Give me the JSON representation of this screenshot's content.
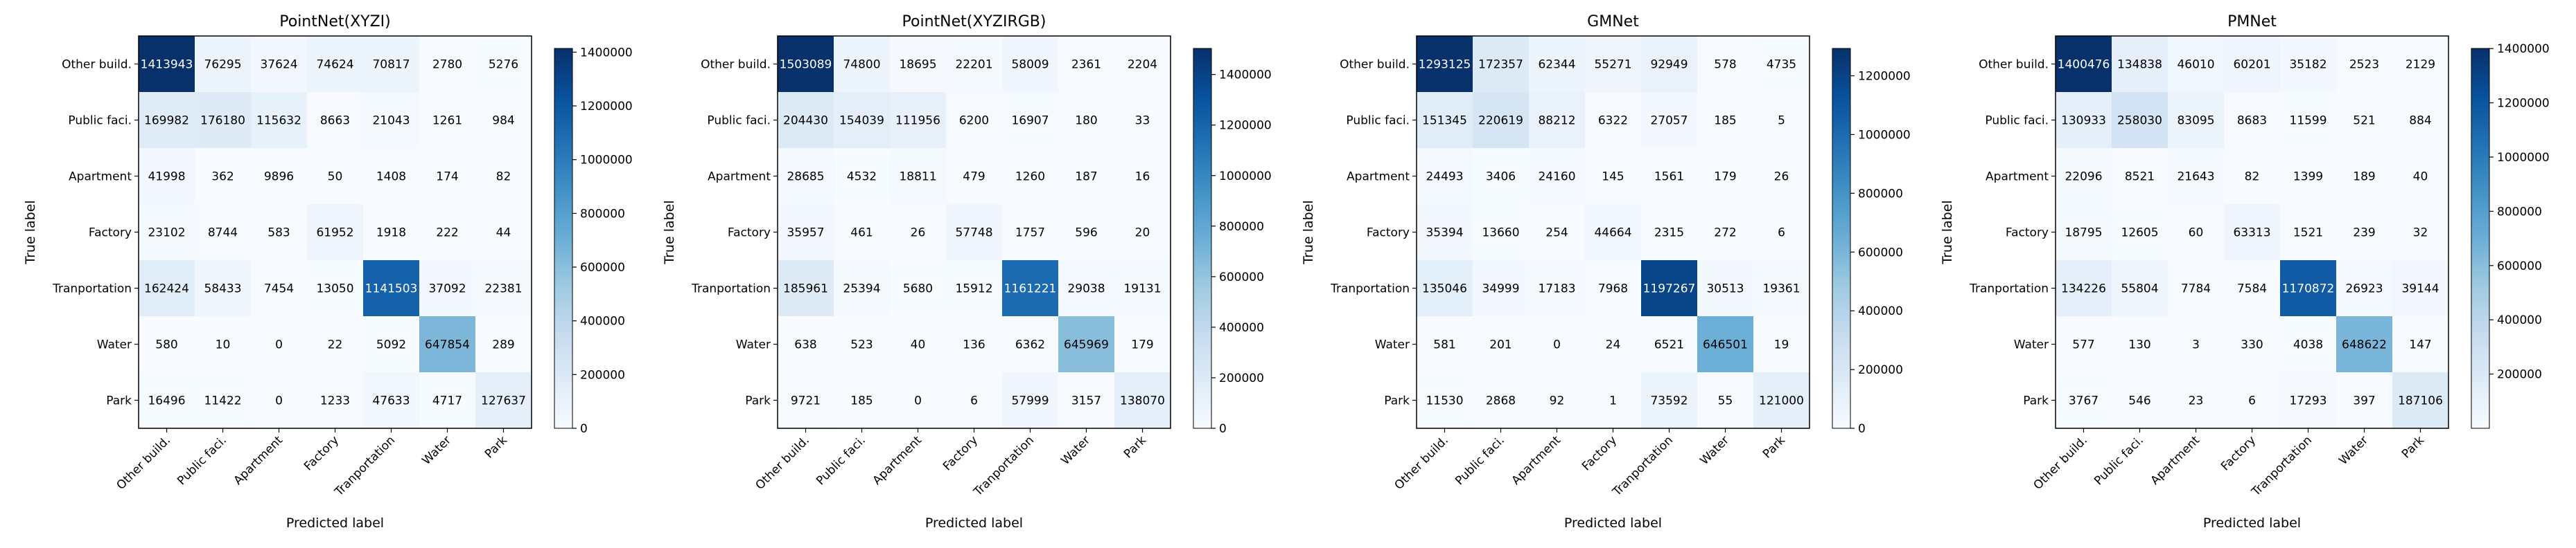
{
  "chart_data": [
    {
      "type": "heatmap",
      "title": "PointNet(XYZI)",
      "xlabel": "Predicted label",
      "ylabel": "True label",
      "categories": [
        "Other build.",
        "Public faci.",
        "Apartment",
        "Factory",
        "Tranportation",
        "Water",
        "Park"
      ],
      "matrix": [
        [
          1413943,
          76295,
          37624,
          74624,
          70817,
          2780,
          5276
        ],
        [
          169982,
          176180,
          115632,
          8663,
          21043,
          1261,
          984
        ],
        [
          41998,
          362,
          9896,
          50,
          1408,
          174,
          82
        ],
        [
          23102,
          8744,
          583,
          61952,
          1918,
          222,
          44
        ],
        [
          162424,
          58433,
          7454,
          13050,
          1141503,
          37092,
          22381
        ],
        [
          580,
          10,
          0,
          22,
          5092,
          647854,
          289
        ],
        [
          16496,
          11422,
          0,
          1233,
          47633,
          4717,
          127637
        ]
      ],
      "cell_labels": [
        [
          "1413943",
          "76295",
          "37624",
          "74624",
          "70817",
          "2780",
          "5276"
        ],
        [
          "169982",
          "176180",
          "115632",
          "8663",
          "21043",
          "1261",
          "984"
        ],
        [
          "41998",
          "362",
          "9896",
          "50",
          "1408",
          "174",
          "82"
        ],
        [
          "23102",
          "8744",
          "583",
          "61952",
          "1918",
          "222",
          "44"
        ],
        [
          "162424",
          "58433",
          "7454",
          "13050",
          "1141503",
          "37092",
          "22381"
        ],
        [
          "580",
          "10",
          "0",
          "22",
          "5092",
          "647854",
          "289"
        ],
        [
          "16496",
          "11422",
          "0",
          "1233",
          "47633",
          "4717",
          "127637"
        ]
      ],
      "colorbar": {
        "min": 0,
        "max": 1413943,
        "ticks": [
          0,
          200000,
          400000,
          600000,
          800000,
          1000000,
          1200000,
          1400000
        ],
        "tick_labels": [
          "0",
          "200000",
          "400000",
          "600000",
          "800000",
          "1000000",
          "1200000",
          "1400000"
        ]
      }
    },
    {
      "type": "heatmap",
      "title": "PointNet(XYZIRGB)",
      "xlabel": "Predicted label",
      "ylabel": "True label",
      "categories": [
        "Other build.",
        "Public faci.",
        "Apartment",
        "Factory",
        "Tranportation",
        "Water",
        "Park"
      ],
      "matrix": [
        [
          1503089,
          74800,
          18695,
          22201,
          58009,
          2361,
          2204
        ],
        [
          204430,
          154039,
          111956,
          6200,
          16907,
          180,
          33
        ],
        [
          28685,
          4532,
          18811,
          479,
          1260,
          187,
          16
        ],
        [
          35957,
          461,
          26,
          57748,
          1757,
          596,
          20
        ],
        [
          185961,
          25394,
          5680,
          15912,
          1161221,
          29038,
          19131
        ],
        [
          638,
          523,
          40,
          136,
          6362,
          645969,
          179
        ],
        [
          9721,
          185,
          0,
          6,
          57999,
          3157,
          138070
        ]
      ],
      "cell_labels": [
        [
          "1503089",
          "74800",
          "18695",
          "22201",
          "58009",
          "2361",
          "2204"
        ],
        [
          "204430",
          "154039",
          "111956",
          "6200",
          "16907",
          "180",
          "33"
        ],
        [
          "28685",
          "4532",
          "18811",
          "479",
          "1260",
          "187",
          "16"
        ],
        [
          "35957",
          "461",
          "26",
          "57748",
          "1757",
          "596",
          "20"
        ],
        [
          "185961",
          "25394",
          "5680",
          "15912",
          "1161221",
          "29038",
          "19131"
        ],
        [
          "638",
          "523",
          "40",
          "136",
          "6362",
          "645969",
          "179"
        ],
        [
          "9721",
          "185",
          "0",
          "6",
          "57999",
          "3157",
          "138070"
        ]
      ],
      "colorbar": {
        "min": 0,
        "max": 1503089,
        "ticks": [
          0,
          200000,
          400000,
          600000,
          800000,
          1000000,
          1200000,
          1400000
        ],
        "tick_labels": [
          "0",
          "200000",
          "400000",
          "600000",
          "800000",
          "1000000",
          "1200000",
          "1400000"
        ]
      }
    },
    {
      "type": "heatmap",
      "title": "GMNet",
      "xlabel": "Predicted label",
      "ylabel": "True label",
      "categories": [
        "Other build.",
        "Public faci.",
        "Apartment",
        "Factory",
        "Tranportation",
        "Water",
        "Park"
      ],
      "matrix": [
        [
          1293125,
          172357,
          62344,
          55271,
          92949,
          578,
          4735
        ],
        [
          151345,
          220619,
          88212,
          6322,
          27057,
          185,
          5
        ],
        [
          24493,
          3406,
          24160,
          145,
          1561,
          179,
          26
        ],
        [
          35394,
          13660,
          254,
          44664,
          2315,
          272,
          6
        ],
        [
          135046,
          34999,
          17183,
          7968,
          1197267,
          30513,
          19361
        ],
        [
          581,
          201,
          0,
          24,
          6521,
          646501,
          19
        ],
        [
          11530,
          2868,
          92,
          1,
          73592,
          55,
          121000
        ]
      ],
      "cell_labels": [
        [
          "1293125",
          "172357",
          "62344",
          "55271",
          "92949",
          "578",
          "4735"
        ],
        [
          "151345",
          "220619",
          "88212",
          "6322",
          "27057",
          "185",
          "5"
        ],
        [
          "24493",
          "3406",
          "24160",
          "145",
          "1561",
          "179",
          "26"
        ],
        [
          "35394",
          "13660",
          "254",
          "44664",
          "2315",
          "272",
          "6"
        ],
        [
          "135046",
          "34999",
          "17183",
          "7968",
          "1197267",
          "30513",
          "19361"
        ],
        [
          "581",
          "201",
          "0",
          "24",
          "6521",
          "646501",
          "19"
        ],
        [
          "11530",
          "2868",
          "92",
          "1",
          "73592",
          "55",
          "121000"
        ]
      ],
      "colorbar": {
        "min": 0,
        "max": 1293125,
        "ticks": [
          0,
          200000,
          400000,
          600000,
          800000,
          1000000,
          1200000
        ],
        "tick_labels": [
          "0",
          "200000",
          "400000",
          "600000",
          "800000",
          "1000000",
          "1200000"
        ]
      }
    },
    {
      "type": "heatmap",
      "title": "PMNet",
      "xlabel": "Predicted label",
      "ylabel": "True label",
      "categories": [
        "Other build.",
        "Public faci.",
        "Apartment",
        "Factory",
        "Tranportation",
        "Water",
        "Park"
      ],
      "matrix": [
        [
          1400476,
          134838,
          46010,
          60201,
          35182,
          2523,
          2129
        ],
        [
          130933,
          258030,
          83095,
          8683,
          11599,
          521,
          884
        ],
        [
          22096,
          8521,
          21643,
          82,
          1399,
          189,
          40
        ],
        [
          18795,
          12605,
          60,
          63313,
          1521,
          239,
          32
        ],
        [
          134226,
          55804,
          7784,
          7584,
          1170872,
          26923,
          39144
        ],
        [
          577,
          130,
          3,
          330,
          4038,
          648622,
          147
        ],
        [
          3767,
          546,
          23,
          6,
          17293,
          397,
          187106
        ]
      ],
      "cell_labels": [
        [
          "1400476",
          "134838",
          "46010",
          "60201",
          "35182",
          "2523",
          "2129"
        ],
        [
          "130933",
          "258030",
          "83095",
          "8683",
          "11599",
          "521",
          "884"
        ],
        [
          "22096",
          "8521",
          "21643",
          "82",
          "1399",
          "189",
          "40"
        ],
        [
          "18795",
          "12605",
          "60",
          "63313",
          "1521",
          "239",
          "32"
        ],
        [
          "134226",
          "55804",
          "7784",
          "7584",
          "1170872",
          "26923",
          "39144"
        ],
        [
          "577",
          "130",
          "3",
          "330",
          "4038",
          "648622",
          "147"
        ],
        [
          "3767",
          "546",
          "23",
          "6",
          "17293",
          "397",
          "187106"
        ]
      ],
      "colorbar": {
        "min": 3,
        "max": 1400476,
        "ticks": [
          200000,
          400000,
          600000,
          800000,
          1000000,
          1200000,
          1400000
        ],
        "tick_labels": [
          "200000",
          "400000",
          "600000",
          "800000",
          "1000000",
          "1200000",
          "1400000"
        ]
      }
    }
  ]
}
